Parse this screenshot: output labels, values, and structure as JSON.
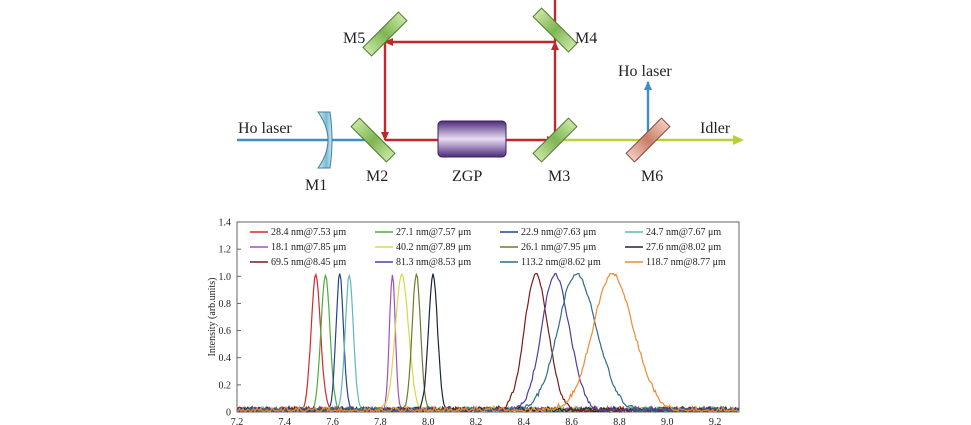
{
  "diagram": {
    "labels": {
      "ho_laser_in": "Ho laser",
      "ho_laser_out": "Ho laser",
      "idler": "Idler",
      "m1": "M1",
      "m2": "M2",
      "m3": "M3",
      "m4": "M4",
      "m5": "M5",
      "m6": "M6",
      "crystal": "ZGP"
    },
    "colors": {
      "pump_beam": "#3a8fc8",
      "cavity_beam": "#c0282c",
      "idler_beam": "#b6d23a",
      "mirror_green": "#9ccc6a",
      "mirror_pink": "#e3a89a",
      "lens": "#8fc6de",
      "crystal": "#6a3f8f"
    }
  },
  "chart_data": {
    "type": "line",
    "title": "",
    "xlabel": "",
    "ylabel": "Intensity (arb.units)",
    "xlim": [
      7.2,
      9.3
    ],
    "ylim": [
      0,
      1.4
    ],
    "xticks": [
      "7.2",
      "7.4",
      "7.6",
      "7.8",
      "8.0",
      "8.2",
      "8.4",
      "8.6",
      "8.8",
      "9.0",
      "9.2"
    ],
    "yticks": [
      "0",
      "0.2",
      "0.4",
      "0.6",
      "0.8",
      "1.0",
      "1.2",
      "1.4"
    ],
    "legend_position": "top",
    "series": [
      {
        "name": "28.4 nm@7.53 μm",
        "center": 7.53,
        "fwhm_nm": 28.4,
        "peak": 1.0,
        "color": "#d62828"
      },
      {
        "name": "27.1 nm@7.57 μm",
        "center": 7.57,
        "fwhm_nm": 27.1,
        "peak": 1.0,
        "color": "#4caf3c"
      },
      {
        "name": "22.9 nm@7.63 μm",
        "center": 7.63,
        "fwhm_nm": 22.9,
        "peak": 1.0,
        "color": "#24428f"
      },
      {
        "name": "24.7 nm@7.67 μm",
        "center": 7.67,
        "fwhm_nm": 24.7,
        "peak": 1.0,
        "color": "#5fb8b8"
      },
      {
        "name": "18.1 nm@7.85 μm",
        "center": 7.85,
        "fwhm_nm": 18.1,
        "peak": 1.0,
        "color": "#a54fbf"
      },
      {
        "name": "40.2 nm@7.89 μm",
        "center": 7.89,
        "fwhm_nm": 40.2,
        "peak": 1.0,
        "color": "#d8d84a"
      },
      {
        "name": "26.1 nm@7.95 μm",
        "center": 7.95,
        "fwhm_nm": 26.1,
        "peak": 1.0,
        "color": "#6e7a2c"
      },
      {
        "name": "27.6 nm@8.02 μm",
        "center": 8.02,
        "fwhm_nm": 27.6,
        "peak": 1.0,
        "color": "#1c2340"
      },
      {
        "name": "69.5 nm@8.45 μm",
        "center": 8.45,
        "fwhm_nm": 69.5,
        "peak": 1.0,
        "color": "#7a1b1b"
      },
      {
        "name": "81.3 nm@8.53 μm",
        "center": 8.53,
        "fwhm_nm": 81.3,
        "peak": 1.0,
        "color": "#4e3f9c"
      },
      {
        "name": "113.2 nm@8.62 μm",
        "center": 8.62,
        "fwhm_nm": 113.2,
        "peak": 1.0,
        "color": "#2e6d8a"
      },
      {
        "name": "118.7 nm@8.77 μm",
        "center": 8.77,
        "fwhm_nm": 118.7,
        "peak": 1.0,
        "color": "#f08a2e"
      }
    ]
  }
}
